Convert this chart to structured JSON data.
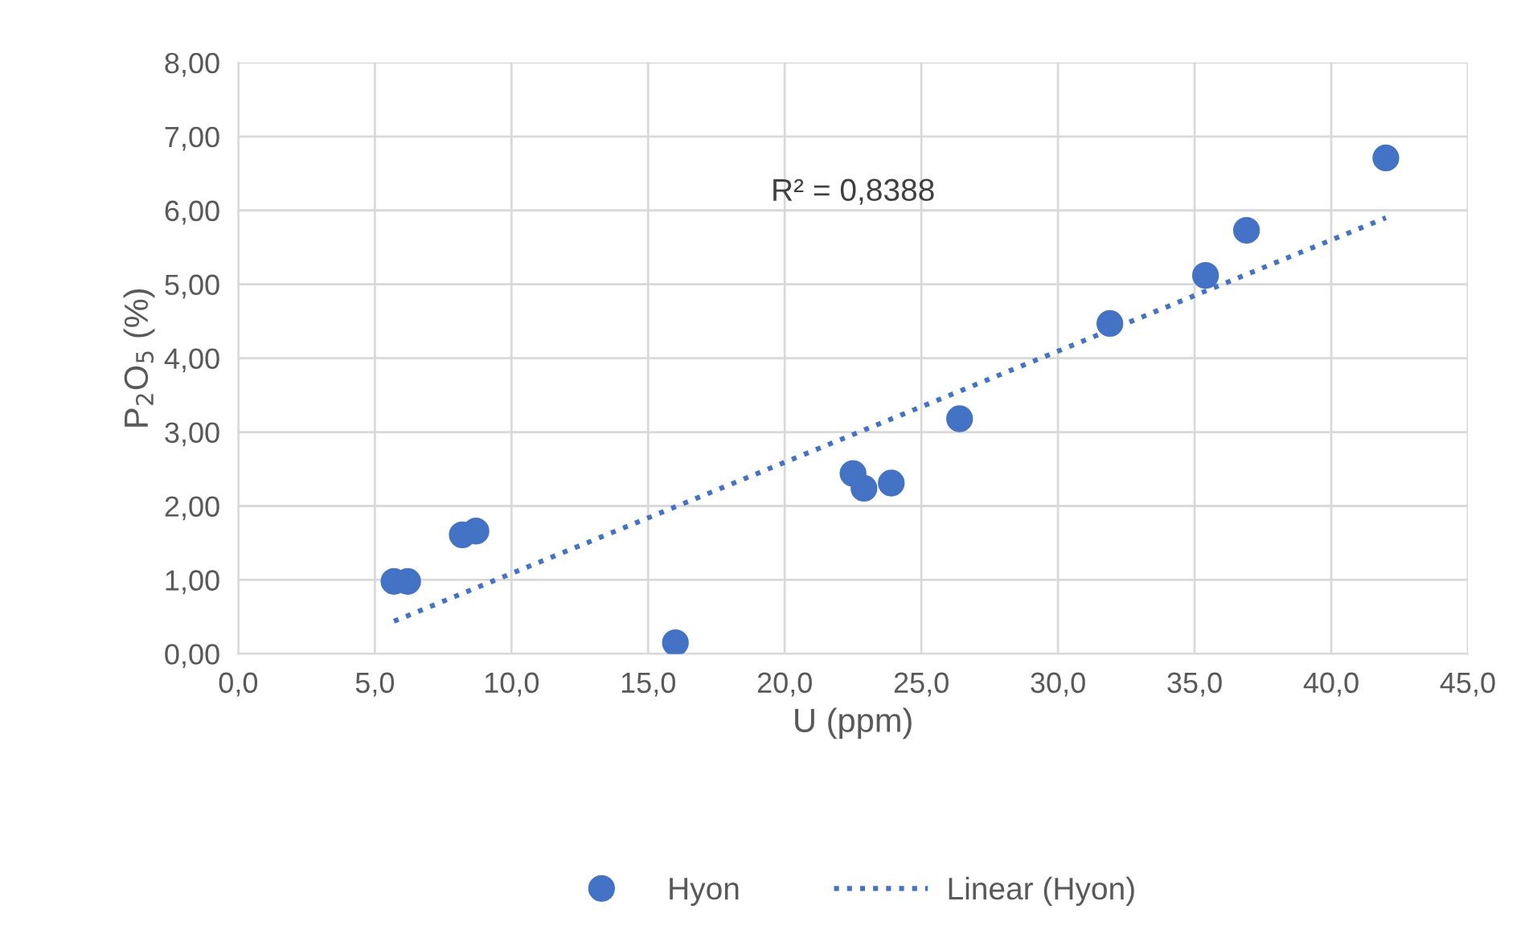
{
  "chart_data": {
    "type": "scatter",
    "xlabel": "U (ppm)",
    "ylabel": "P$_{2}$O$_{5}$ (%)",
    "series": [
      {
        "name": "Hyon",
        "color": "#4472c4",
        "x": [
          5.7,
          6.2,
          8.2,
          8.7,
          16.0,
          22.5,
          22.9,
          23.9,
          26.4,
          31.9,
          35.4,
          36.9,
          42.0
        ],
        "values": [
          0.98,
          0.98,
          1.61,
          1.66,
          0.15,
          2.44,
          2.24,
          2.31,
          3.18,
          4.47,
          5.12,
          5.73,
          6.71
        ]
      },
      {
        "name": "Linear (Hyon)",
        "type": "line",
        "color": "#4472c4",
        "line_style": "dotted",
        "marker": "none",
        "x": [
          5.7,
          42.0
        ],
        "values": [
          0.44,
          5.9
        ]
      }
    ],
    "annotations": [
      "R² = 0,8388"
    ],
    "xlim": [
      0,
      45
    ],
    "xticks": [
      {
        "value": 0,
        "label": "0,0"
      },
      {
        "value": 5,
        "label": "5,0"
      },
      {
        "value": 10,
        "label": "10,0"
      },
      {
        "value": 15,
        "label": "15,0"
      },
      {
        "value": 20,
        "label": "20,0"
      },
      {
        "value": 25,
        "label": "25,0"
      },
      {
        "value": 30,
        "label": "30,0"
      },
      {
        "value": 35,
        "label": "35,0"
      },
      {
        "value": 40,
        "label": "40,0"
      },
      {
        "value": 45,
        "label": "45,0"
      }
    ],
    "ylim": [
      0,
      8
    ],
    "yticks": [
      {
        "value": 0,
        "label": "0,00"
      },
      {
        "value": 1,
        "label": "1,00"
      },
      {
        "value": 2,
        "label": "2,00"
      },
      {
        "value": 3,
        "label": "3,00"
      },
      {
        "value": 4,
        "label": "4,00"
      },
      {
        "value": 5,
        "label": "5,00"
      },
      {
        "value": 6,
        "label": "6,00"
      },
      {
        "value": 7,
        "label": "7,00"
      },
      {
        "value": 8,
        "label": "8,00"
      }
    ],
    "grid": true,
    "legend": "bottom",
    "marker": "circle"
  }
}
